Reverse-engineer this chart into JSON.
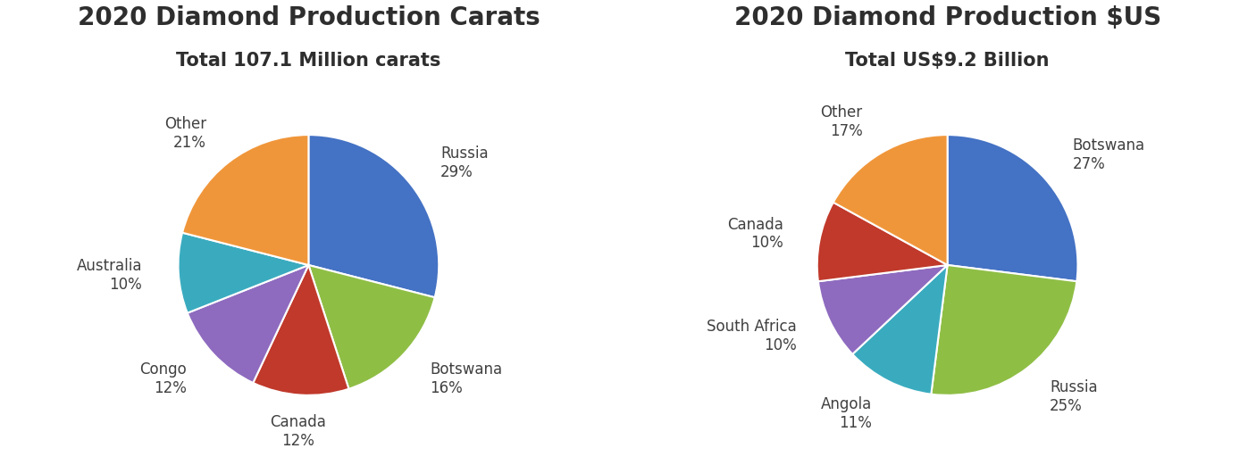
{
  "chart1": {
    "title": "2020 Diamond Production Carats",
    "subtitle": "Total 107.1 Million carats",
    "labels": [
      "Russia",
      "Botswana",
      "Canada",
      "Congo",
      "Australia",
      "Other"
    ],
    "values": [
      29,
      16,
      12,
      12,
      10,
      21
    ],
    "colors": [
      "#4472C4",
      "#8FBE45",
      "#C0392B",
      "#8E6BBF",
      "#3AABBF",
      "#F0963A"
    ],
    "startangle": 90
  },
  "chart2": {
    "title": "2020 Diamond Production $US",
    "subtitle": "Total US$9.2 Billion",
    "labels": [
      "Botswana",
      "Russia",
      "Angola",
      "South Africa",
      "Canada",
      "Other"
    ],
    "values": [
      27,
      25,
      11,
      10,
      10,
      17
    ],
    "colors": [
      "#4472C4",
      "#8FBE45",
      "#3AABBF",
      "#8E6BBF",
      "#C0392B",
      "#F0963A"
    ],
    "startangle": 90
  },
  "bg_color": "#FFFFFF",
  "title_fontsize": 20,
  "subtitle_fontsize": 15,
  "label_fontsize": 12
}
